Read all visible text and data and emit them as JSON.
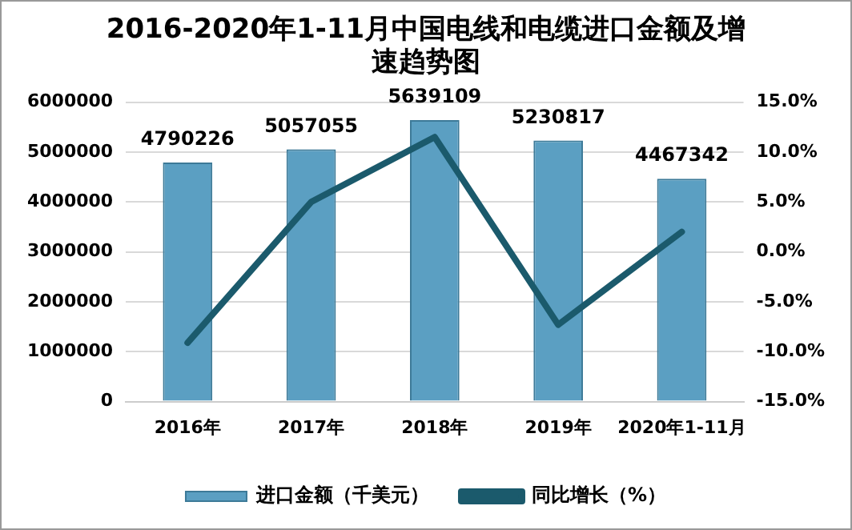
{
  "chart_data": {
    "type": "bar",
    "title": "2016-2020年1-11月中国电线和电缆进口金额及增速趋势图",
    "categories": [
      "2016年",
      "2017年",
      "2018年",
      "2019年",
      "2020年1-11月"
    ],
    "series": [
      {
        "name": "进口金额（千美元）",
        "color": "#5b9fc2",
        "values": [
          4790226,
          5057055,
          5639109,
          5230817,
          4467342
        ],
        "value_labels": [
          "4790226",
          "5057055",
          "5639109",
          "5230817",
          "4467342"
        ]
      },
      {
        "name": "同比增长（%）",
        "type": "line",
        "axis": "y2",
        "color": "#1b5a6c",
        "values": [
          -9.1,
          5.0,
          11.5,
          -7.3,
          2.0
        ]
      }
    ],
    "ylim": [
      0,
      6000000
    ],
    "yticks": [
      0,
      1000000,
      2000000,
      3000000,
      4000000,
      5000000,
      6000000
    ],
    "y2lim": [
      -15,
      15
    ],
    "y2ticks": [
      {
        "value": -15,
        "label": "-15.0%"
      },
      {
        "value": -10,
        "label": "-10.0%"
      },
      {
        "value": -5,
        "label": "-5.0%"
      },
      {
        "value": 0,
        "label": "0.0%"
      },
      {
        "value": 5,
        "label": "5.0%"
      },
      {
        "value": 10,
        "label": "10.0%"
      },
      {
        "value": 15,
        "label": "15.0%"
      }
    ],
    "grid": "y",
    "legend": "bottom",
    "marker": "none"
  }
}
